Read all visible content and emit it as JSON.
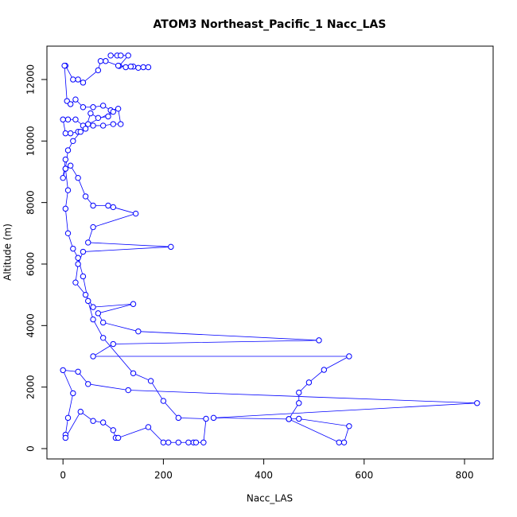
{
  "chart_data": {
    "type": "line",
    "markers": true,
    "title": "ATOM3 Northeast_Pacific_1 Nacc_LAS",
    "x_label": "Nacc_LAS",
    "y_label": "Altitude (m)",
    "color": "#0000ff",
    "grid": false,
    "xlim": [
      -32,
      857
    ],
    "ylim": [
      -336,
      13085
    ],
    "xticks": [
      0,
      200,
      400,
      600,
      800
    ],
    "yticks": [
      0,
      2000,
      4000,
      6000,
      8000,
      10000,
      12000
    ],
    "x": [
      95,
      108,
      115,
      130,
      112,
      125,
      140,
      150,
      160,
      170,
      135,
      110,
      85,
      75,
      70,
      40,
      30,
      20,
      5,
      3,
      8,
      15,
      25,
      40,
      60,
      80,
      95,
      110,
      115,
      100,
      80,
      60,
      40,
      25,
      10,
      0,
      5,
      15,
      30,
      45,
      55,
      70,
      90,
      100,
      50,
      35,
      20,
      10,
      5,
      15,
      30,
      45,
      60,
      90,
      100,
      145,
      60,
      50,
      215,
      40,
      30,
      25,
      45,
      60,
      140,
      70,
      80,
      150,
      510,
      100,
      60,
      570,
      520,
      490,
      470,
      470,
      450,
      470,
      570,
      560,
      550,
      450,
      300,
      825,
      130,
      50,
      30,
      0,
      20,
      10,
      5,
      5,
      35,
      60,
      80,
      100,
      105,
      110,
      170,
      200,
      210,
      230,
      250,
      260,
      265,
      280,
      285,
      230,
      200,
      175,
      140,
      80,
      60,
      50,
      40,
      30,
      20,
      10,
      5,
      10,
      5,
      0,
      5
    ],
    "values": [
      12780,
      12780,
      12780,
      12780,
      12440,
      12400,
      12420,
      12380,
      12400,
      12400,
      12420,
      12450,
      12600,
      12600,
      12300,
      11900,
      12000,
      12000,
      12450,
      12450,
      11300,
      11200,
      11350,
      11100,
      11100,
      11150,
      11000,
      11050,
      10550,
      10550,
      10500,
      10500,
      10500,
      10700,
      10700,
      10700,
      10250,
      10250,
      10300,
      10400,
      10900,
      10750,
      10800,
      10950,
      10550,
      10300,
      10000,
      9700,
      9100,
      9200,
      8800,
      8200,
      7900,
      7900,
      7850,
      7640,
      7200,
      6700,
      6560,
      6400,
      6000,
      5400,
      5000,
      4600,
      4700,
      4400,
      4100,
      3810,
      3520,
      3400,
      3000,
      3000,
      2560,
      2150,
      1820,
      1480,
      960,
      970,
      730,
      200,
      200,
      960,
      1000,
      1480,
      1900,
      2100,
      2500,
      2550,
      1800,
      1000,
      450,
      350,
      1200,
      900,
      850,
      600,
      350,
      350,
      700,
      200,
      200,
      200,
      200,
      200,
      200,
      200,
      970,
      1000,
      1550,
      2200,
      2450,
      3600,
      4200,
      4800,
      5600,
      6200,
      6500,
      7000,
      7800,
      8400,
      9100,
      8800,
      9400
    ]
  }
}
